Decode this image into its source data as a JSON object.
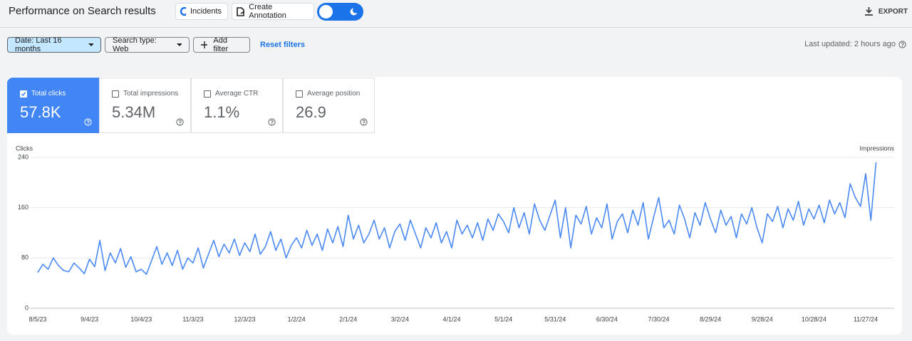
{
  "header": {
    "title": "Performance on Search results",
    "incidents": "Incidents",
    "annotation": "Create Annotation",
    "export": "EXPORT"
  },
  "filters": {
    "date": "Date: Last 16 months",
    "search_type": "Search type: Web",
    "add": "Add filter",
    "reset": "Reset filters",
    "updated": "Last updated: 2 hours ago"
  },
  "metrics": [
    {
      "label": "Total clicks",
      "value": "57.8K"
    },
    {
      "label": "Total impressions",
      "value": "5.34M"
    },
    {
      "label": "Average CTR",
      "value": "1.1%"
    },
    {
      "label": "Average position",
      "value": "26.9"
    }
  ],
  "chart_data": {
    "type": "line",
    "ylabel": "Clicks",
    "y2label": "Impressions",
    "color": "#4a89f3",
    "grid": true,
    "ylim": [
      0,
      240
    ],
    "yticks": [
      0,
      80,
      160,
      240
    ],
    "categories": [
      "8/5/23",
      null,
      null,
      null,
      null,
      null,
      null,
      null,
      null,
      null,
      "9/4/23",
      null,
      null,
      null,
      null,
      null,
      null,
      null,
      null,
      null,
      "10/4/23",
      null,
      null,
      null,
      null,
      null,
      null,
      null,
      null,
      null,
      "11/3/23",
      null,
      null,
      null,
      null,
      null,
      null,
      null,
      null,
      null,
      "12/3/23",
      null,
      null,
      null,
      null,
      null,
      null,
      null,
      null,
      null,
      "1/2/24",
      null,
      null,
      null,
      null,
      null,
      null,
      null,
      null,
      null,
      "2/1/24",
      null,
      null,
      null,
      null,
      null,
      null,
      null,
      null,
      null,
      "3/2/24",
      null,
      null,
      null,
      null,
      null,
      null,
      null,
      null,
      null,
      "4/1/24",
      null,
      null,
      null,
      null,
      null,
      null,
      null,
      null,
      null,
      "5/1/24",
      null,
      null,
      null,
      null,
      null,
      null,
      null,
      null,
      null,
      "5/31/24",
      null,
      null,
      null,
      null,
      null,
      null,
      null,
      null,
      null,
      "6/30/24",
      null,
      null,
      null,
      null,
      null,
      null,
      null,
      null,
      null,
      "7/30/24",
      null,
      null,
      null,
      null,
      null,
      null,
      null,
      null,
      null,
      "8/29/24",
      null,
      null,
      null,
      null,
      null,
      null,
      null,
      null,
      null,
      "9/28/24",
      null,
      null,
      null,
      null,
      null,
      null,
      null,
      null,
      null,
      "10/28/24",
      null,
      null,
      null,
      null,
      null,
      null,
      null,
      null,
      null,
      "11/27/24",
      null,
      null
    ],
    "values": [
      57,
      70,
      62,
      80,
      68,
      60,
      58,
      72,
      64,
      55,
      78,
      66,
      108,
      60,
      88,
      72,
      95,
      65,
      82,
      58,
      62,
      54,
      76,
      98,
      70,
      88,
      68,
      92,
      62,
      80,
      72,
      96,
      64,
      86,
      108,
      82,
      102,
      88,
      110,
      84,
      104,
      90,
      118,
      86,
      98,
      122,
      92,
      110,
      80,
      100,
      112,
      96,
      124,
      100,
      118,
      92,
      126,
      104,
      130,
      98,
      148,
      110,
      132,
      104,
      118,
      140,
      110,
      128,
      96,
      122,
      134,
      108,
      140,
      118,
      96,
      128,
      112,
      136,
      104,
      122,
      96,
      140,
      118,
      132,
      112,
      136,
      108,
      142,
      124,
      150,
      138,
      120,
      160,
      128,
      152,
      118,
      166,
      140,
      124,
      148,
      172,
      112,
      160,
      96,
      148,
      134,
      162,
      118,
      144,
      128,
      166,
      110,
      138,
      150,
      120,
      156,
      132,
      168,
      110,
      144,
      176,
      128,
      140,
      118,
      164,
      142,
      112,
      152,
      132,
      168,
      142,
      120,
      156,
      132,
      146,
      112,
      150,
      134,
      160,
      128,
      104,
      150,
      138,
      162,
      128,
      158,
      140,
      170,
      132,
      158,
      142,
      164,
      136,
      172,
      150,
      168,
      144,
      198,
      176,
      162,
      214,
      140,
      232
    ]
  }
}
